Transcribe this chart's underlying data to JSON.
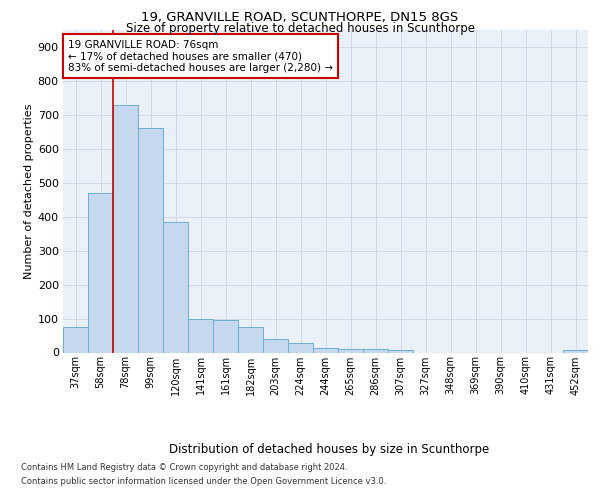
{
  "title1": "19, GRANVILLE ROAD, SCUNTHORPE, DN15 8GS",
  "title2": "Size of property relative to detached houses in Scunthorpe",
  "xlabel": "Distribution of detached houses by size in Scunthorpe",
  "ylabel": "Number of detached properties",
  "categories": [
    "37sqm",
    "58sqm",
    "78sqm",
    "99sqm",
    "120sqm",
    "141sqm",
    "161sqm",
    "182sqm",
    "203sqm",
    "224sqm",
    "244sqm",
    "265sqm",
    "286sqm",
    "307sqm",
    "327sqm",
    "348sqm",
    "369sqm",
    "390sqm",
    "410sqm",
    "431sqm",
    "452sqm"
  ],
  "values": [
    75,
    470,
    730,
    660,
    385,
    100,
    95,
    75,
    40,
    27,
    12,
    11,
    9,
    6,
    0,
    0,
    0,
    0,
    0,
    0,
    8
  ],
  "bar_color": "#c5d8ed",
  "bar_edge_color": "#6aaed6",
  "annotation_text": "19 GRANVILLE ROAD: 76sqm\n← 17% of detached houses are smaller (470)\n83% of semi-detached houses are larger (2,280) →",
  "annotation_box_color": "#ffffff",
  "annotation_box_edge": "#cc0000",
  "property_line_color": "#cc0000",
  "grid_color": "#d0d8e8",
  "background_color": "#eaf0f8",
  "ylim": [
    0,
    950
  ],
  "yticks": [
    0,
    100,
    200,
    300,
    400,
    500,
    600,
    700,
    800,
    900
  ],
  "footer1": "Contains HM Land Registry data © Crown copyright and database right 2024.",
  "footer2": "Contains public sector information licensed under the Open Government Licence v3.0."
}
